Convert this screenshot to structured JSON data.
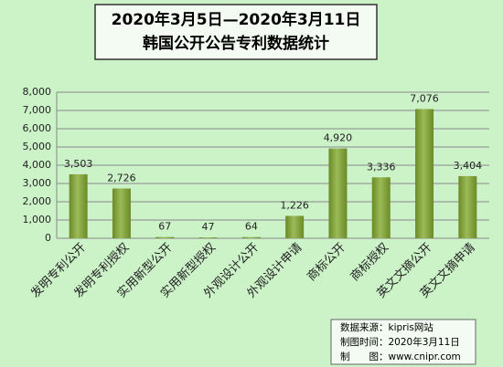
{
  "chart_data": {
    "type": "bar",
    "title": "2020年3月5日—2020年3月11日",
    "subtitle": "韩国公开公告专利数据统计",
    "categories": [
      "发明专利公开",
      "发明专利授权",
      "实用新型公开",
      "实用新型授权",
      "外观设计公开",
      "外观设计申请",
      "商标公开",
      "商标授权",
      "英文文摘公开",
      "英文文摘申请"
    ],
    "values": [
      3503,
      2726,
      67,
      47,
      64,
      1226,
      4920,
      3336,
      7076,
      3404
    ],
    "value_labels": [
      "3,503",
      "2,726",
      "67",
      "47",
      "64",
      "1,226",
      "4,920",
      "3,336",
      "7,076",
      "3,404"
    ],
    "color": "#9bbb59",
    "ylim": [
      0,
      8000
    ],
    "yticks": [
      0,
      {
        "value": 1000,
        "label": "1,000"
      },
      {
        "value": 2000,
        "label": "2,000"
      },
      {
        "value": 3000,
        "label": "3,000"
      },
      {
        "value": 4000,
        "label": "4,000"
      },
      {
        "value": 5000,
        "label": "5,000"
      },
      {
        "value": 6000,
        "label": "6,000"
      },
      {
        "value": 7000,
        "label": "7,000"
      },
      {
        "value": 8000,
        "label": "8,000"
      }
    ],
    "grid": true,
    "annotations": [
      "数据来源：kipris网站",
      "制图时间：2020年3月11日",
      "制　　图：www.cnipr.com"
    ]
  }
}
